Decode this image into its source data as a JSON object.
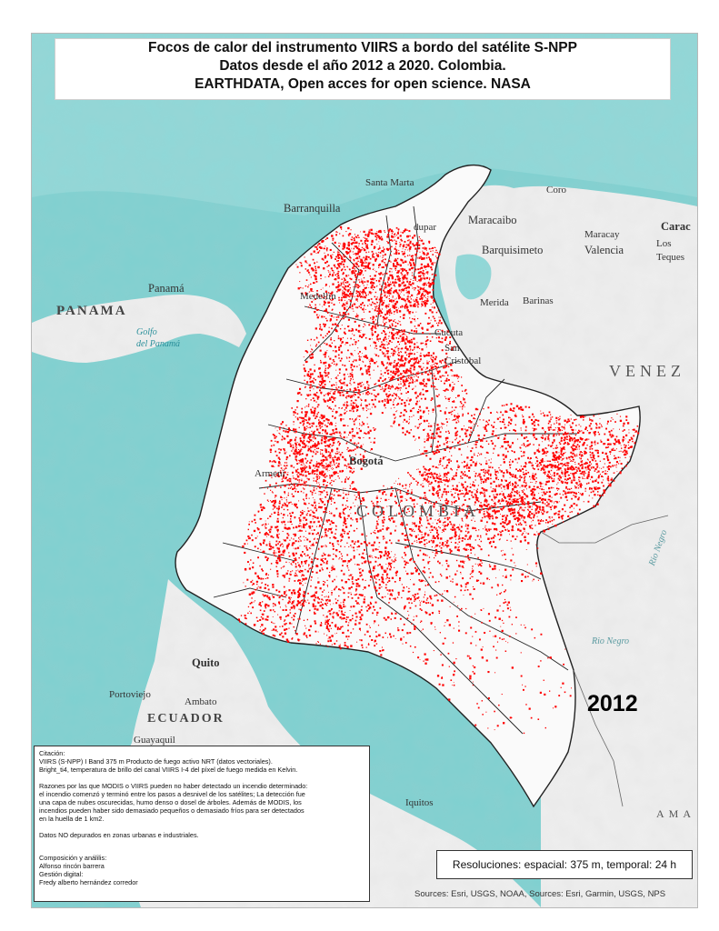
{
  "title": {
    "line1": "Focos de calor del instrumento VIIRS a bordo del satélite S-NPP",
    "line2": "Datos desde el año 2012 a 2020.  Colombia.",
    "line3": "EARTHDATA, Open acces for open science. NASA"
  },
  "year": "2012",
  "notes": {
    "citation_heading": "Citación:",
    "citation_1": "VIIRS (S-NPP) I Band 375 m Producto de fuego activo NRT (datos vectoriales).",
    "citation_2": "Bright_ti4, temperatura de brillo del canal VIIRS I-4 del píxel de fuego medida en Kelvin.",
    "reasons_1": "Razones por las que MODIS o VIIRS pueden no haber detectado un incendio determinado:",
    "reasons_2": "el incendio comenzó y terminó entre los pasos a desnivel de los  satélites; La detección fue",
    "reasons_3": " una capa de nubes oscurecidas, humo denso o dosel de árboles. Además de MODIS, los",
    "reasons_4": "incendios pueden haber sido demasiado pequeños o demasiado fríos para ser detectados",
    "reasons_5": "en la huella de 1 km2.",
    "urban_note": "Datos NO depurados en zonas urbanas e industriales.",
    "composition_heading": "Composición y análilis:",
    "composition_name": "Alfonso rincón barrera",
    "digital_heading": "Gestión digital:",
    "digital_name": "Fredy alberto hernández corredor"
  },
  "resolution": "Resoluciones: espacial: 375 m, temporal: 24 h",
  "sources": "Sources: Esri, USGS, NOAA, Sources: Esri, Garmin, USGS, NPS",
  "places": {
    "santa_marta": "Santa Marta",
    "barranquilla": "Barranquilla",
    "coro": "Coro",
    "maracaibo": "Maracaibo",
    "maracay": "Maracay",
    "caracas": "Carac",
    "valencia": "Valencia",
    "barquisimeto": "Barquisimeto",
    "los_teques_1": "Los",
    "los_teques_2": "Teques",
    "panama_city": "Panamá",
    "panama": "PANAMA",
    "merida": "Merida",
    "barinas": "Barinas",
    "golfo_1": "Golfo",
    "golfo_2": "del Panamá",
    "cucuta": "Cucuta",
    "san_cristobal_1": "San",
    "san_cristobal_2": "Cristobal",
    "venezuela": "VENEZ",
    "bogota": "Bogotá",
    "colombia": "COLOMBIA",
    "quito": "Quito",
    "portoviejo": "Portoviejo",
    "ambato": "Ambato",
    "ecuador": "ECUADOR",
    "guayaquil": "Guayaquil",
    "iquitos": "Iquitos",
    "rio_negro_1": "Rio Negro",
    "rio_negro_2": "Rio Negro",
    "amazonas": "AMA",
    "valledupar": "dupar",
    "medellin": "Medellín",
    "armenia": "Armeni"
  },
  "fire_points_color": "#ff0000",
  "colors": {
    "ocean": "#7fd1d1",
    "land_background": "#f2f2f2",
    "colombia_land": "#ffffff",
    "fire": "#ff0000",
    "border": "#222222"
  }
}
